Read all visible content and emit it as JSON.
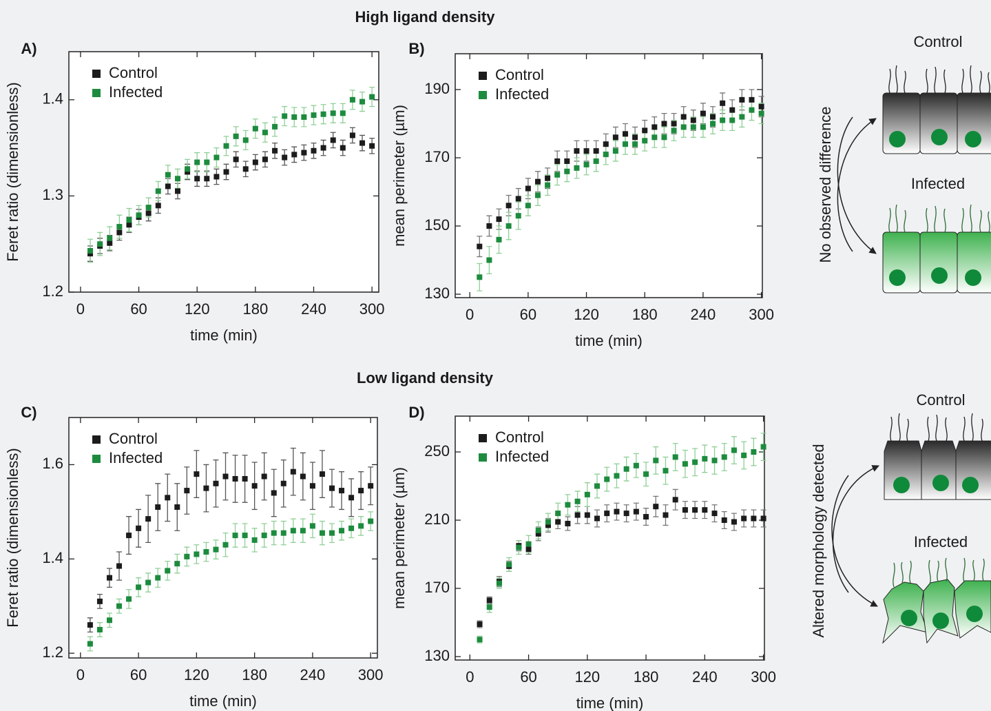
{
  "figure": {
    "sections": [
      "High ligand density",
      "Low ligand density"
    ],
    "diagrams": [
      {
        "top": "Control",
        "bottom": "Infected",
        "note": "No observed difference"
      },
      {
        "top": "Control",
        "bottom": "Infected",
        "note": "Altered morphology detected"
      }
    ]
  },
  "chart_data": [
    {
      "type": "scatter",
      "label": "A)",
      "xlabel": "time (min)",
      "ylabel": "Feret ratio (dimensionless)",
      "x": [
        10,
        20,
        30,
        40,
        50,
        60,
        70,
        80,
        90,
        100,
        110,
        120,
        130,
        140,
        150,
        160,
        170,
        180,
        190,
        200,
        210,
        220,
        230,
        240,
        250,
        260,
        270,
        280,
        290,
        300
      ],
      "xlim": [
        -12,
        307
      ],
      "ylim": [
        1.2,
        1.45
      ],
      "xticks": [
        0,
        60,
        120,
        180,
        240,
        300
      ],
      "yticks": [
        1.2,
        1.3,
        1.4
      ],
      "legend": "upper left",
      "series": [
        {
          "name": "Control",
          "color": "#1c1c1c",
          "error_color": "#555555",
          "values": [
            1.24,
            1.248,
            1.251,
            1.262,
            1.27,
            1.278,
            1.282,
            1.29,
            1.31,
            1.305,
            1.325,
            1.318,
            1.318,
            1.32,
            1.325,
            1.338,
            1.328,
            1.335,
            1.338,
            1.347,
            1.34,
            1.343,
            1.345,
            1.347,
            1.35,
            1.358,
            1.35,
            1.363,
            1.355,
            1.352
          ],
          "errors": [
            0.008,
            0.008,
            0.008,
            0.008,
            0.008,
            0.008,
            0.008,
            0.008,
            0.008,
            0.008,
            0.008,
            0.008,
            0.008,
            0.008,
            0.008,
            0.008,
            0.008,
            0.008,
            0.008,
            0.008,
            0.008,
            0.008,
            0.008,
            0.008,
            0.008,
            0.008,
            0.008,
            0.008,
            0.008,
            0.008
          ]
        },
        {
          "name": "Infected",
          "color": "#1d8b3e",
          "error_color": "#8fcf96",
          "values": [
            1.243,
            1.25,
            1.256,
            1.268,
            1.275,
            1.28,
            1.288,
            1.305,
            1.322,
            1.318,
            1.328,
            1.335,
            1.335,
            1.34,
            1.352,
            1.362,
            1.358,
            1.37,
            1.366,
            1.372,
            1.383,
            1.382,
            1.382,
            1.384,
            1.385,
            1.386,
            1.386,
            1.4,
            1.398,
            1.403
          ],
          "errors": [
            0.012,
            0.012,
            0.012,
            0.012,
            0.012,
            0.01,
            0.01,
            0.01,
            0.01,
            0.01,
            0.01,
            0.01,
            0.01,
            0.01,
            0.01,
            0.01,
            0.01,
            0.01,
            0.01,
            0.01,
            0.01,
            0.01,
            0.01,
            0.01,
            0.01,
            0.01,
            0.01,
            0.01,
            0.01,
            0.01
          ]
        }
      ]
    },
    {
      "type": "scatter",
      "label": "B)",
      "xlabel": "time (min)",
      "ylabel": "mean perimeter (µm)",
      "x": [
        10,
        20,
        30,
        40,
        50,
        60,
        70,
        80,
        90,
        100,
        110,
        120,
        130,
        140,
        150,
        160,
        170,
        180,
        190,
        200,
        210,
        220,
        230,
        240,
        250,
        260,
        270,
        280,
        290,
        300
      ],
      "xlim": [
        -15,
        301
      ],
      "ylim": [
        129,
        200.5
      ],
      "xticks": [
        0,
        60,
        120,
        180,
        240,
        300
      ],
      "yticks": [
        130,
        150,
        170,
        190
      ],
      "legend": "upper left",
      "series": [
        {
          "name": "Control",
          "color": "#1c1c1c",
          "error_color": "#777777",
          "values": [
            144,
            150,
            152,
            156,
            158,
            161,
            163,
            164,
            169,
            169,
            172,
            172,
            172,
            174,
            176,
            177,
            176,
            178,
            179,
            180,
            180,
            182,
            181,
            183,
            182,
            186,
            184,
            187,
            187,
            185
          ],
          "errors": [
            3,
            3,
            3,
            3,
            3,
            3,
            3,
            3,
            3,
            3,
            3,
            3,
            3,
            3,
            3,
            3,
            3,
            3,
            3,
            3,
            3,
            3,
            3,
            3,
            3,
            3,
            3,
            3,
            3,
            3
          ]
        },
        {
          "name": "Infected",
          "color": "#1d8b3e",
          "error_color": "#8fcf96",
          "values": [
            135,
            140,
            146,
            150,
            153,
            156,
            159,
            162,
            165,
            166,
            167,
            168,
            169,
            171,
            172,
            174,
            174,
            175,
            176,
            176,
            178,
            179,
            179,
            179,
            180,
            181,
            181,
            182,
            184,
            183
          ],
          "errors": [
            4,
            4,
            4,
            4,
            4,
            3,
            3,
            3,
            3,
            3,
            3,
            3,
            3,
            3,
            3,
            3,
            3,
            3,
            3,
            3,
            3,
            3,
            3,
            3,
            3,
            3,
            3,
            3,
            3,
            3
          ]
        }
      ]
    },
    {
      "type": "scatter",
      "label": "C)",
      "xlabel": "time (min)",
      "ylabel": "Feret ratio (dimensionless)",
      "x": [
        10,
        20,
        30,
        40,
        50,
        60,
        70,
        80,
        90,
        100,
        110,
        120,
        130,
        140,
        150,
        160,
        170,
        180,
        190,
        200,
        210,
        220,
        230,
        240,
        250,
        260,
        270,
        280,
        290,
        300
      ],
      "xlim": [
        -12,
        307
      ],
      "ylim": [
        1.19,
        1.7
      ],
      "xticks": [
        0,
        60,
        120,
        180,
        240,
        300
      ],
      "yticks": [
        1.2,
        1.4,
        1.6
      ],
      "legend": "upper left",
      "series": [
        {
          "name": "Control",
          "color": "#1c1c1c",
          "error_color": "#555555",
          "values": [
            1.26,
            1.31,
            1.36,
            1.385,
            1.45,
            1.465,
            1.485,
            1.51,
            1.53,
            1.51,
            1.545,
            1.58,
            1.55,
            1.56,
            1.575,
            1.57,
            1.57,
            1.555,
            1.575,
            1.54,
            1.56,
            1.585,
            1.575,
            1.555,
            1.58,
            1.55,
            1.545,
            1.53,
            1.545,
            1.555
          ],
          "errors": [
            0.015,
            0.015,
            0.02,
            0.03,
            0.04,
            0.04,
            0.05,
            0.05,
            0.05,
            0.05,
            0.05,
            0.05,
            0.05,
            0.05,
            0.05,
            0.05,
            0.05,
            0.05,
            0.05,
            0.05,
            0.05,
            0.05,
            0.05,
            0.05,
            0.05,
            0.04,
            0.04,
            0.04,
            0.04,
            0.04
          ]
        },
        {
          "name": "Infected",
          "color": "#1d8b3e",
          "error_color": "#8fcf96",
          "values": [
            1.22,
            1.25,
            1.27,
            1.3,
            1.315,
            1.34,
            1.35,
            1.36,
            1.375,
            1.39,
            1.405,
            1.41,
            1.415,
            1.42,
            1.43,
            1.45,
            1.45,
            1.44,
            1.45,
            1.455,
            1.455,
            1.46,
            1.46,
            1.47,
            1.455,
            1.455,
            1.46,
            1.465,
            1.47,
            1.48
          ],
          "errors": [
            0.015,
            0.015,
            0.015,
            0.015,
            0.02,
            0.02,
            0.02,
            0.02,
            0.02,
            0.02,
            0.02,
            0.02,
            0.02,
            0.02,
            0.025,
            0.025,
            0.025,
            0.025,
            0.025,
            0.025,
            0.025,
            0.025,
            0.025,
            0.025,
            0.025,
            0.02,
            0.02,
            0.02,
            0.02,
            0.02
          ]
        }
      ]
    },
    {
      "type": "scatter",
      "label": "D)",
      "xlabel": "time (min)",
      "ylabel": "mean perimeter (µm)",
      "x": [
        10,
        20,
        30,
        40,
        50,
        60,
        70,
        80,
        90,
        100,
        110,
        120,
        130,
        140,
        150,
        160,
        170,
        180,
        190,
        200,
        210,
        220,
        230,
        240,
        250,
        260,
        270,
        280,
        290,
        300
      ],
      "xlim": [
        -15,
        301
      ],
      "ylim": [
        128,
        271
      ],
      "xticks": [
        0,
        60,
        120,
        180,
        240,
        300
      ],
      "yticks": [
        130,
        170,
        210,
        250
      ],
      "legend": "upper left",
      "series": [
        {
          "name": "Control",
          "color": "#1c1c1c",
          "error_color": "#777777",
          "values": [
            149,
            163,
            174,
            183,
            195,
            193,
            202,
            207,
            209,
            208,
            213,
            213,
            211,
            214,
            215,
            214,
            215,
            212,
            218,
            213,
            222,
            216,
            216,
            216,
            214,
            210,
            209,
            211,
            211,
            211
          ],
          "errors": [
            2,
            2,
            3,
            3,
            3,
            3,
            4,
            4,
            4,
            4,
            5,
            5,
            5,
            5,
            5,
            5,
            5,
            5,
            6,
            6,
            6,
            5,
            5,
            5,
            5,
            5,
            5,
            5,
            5,
            5
          ]
        },
        {
          "name": "Infected",
          "color": "#1d8b3e",
          "error_color": "#8fcf96",
          "values": [
            140,
            159,
            173,
            184,
            194,
            196,
            204,
            209,
            214,
            219,
            221,
            225,
            230,
            234,
            236,
            240,
            242,
            237,
            245,
            239,
            247,
            243,
            244,
            246,
            245,
            247,
            251,
            248,
            250,
            253
          ],
          "errors": [
            2,
            3,
            3,
            4,
            4,
            5,
            5,
            5,
            6,
            6,
            6,
            7,
            7,
            7,
            7,
            7,
            7,
            7,
            8,
            8,
            8,
            8,
            8,
            8,
            8,
            8,
            8,
            8,
            8,
            8
          ]
        }
      ]
    }
  ]
}
